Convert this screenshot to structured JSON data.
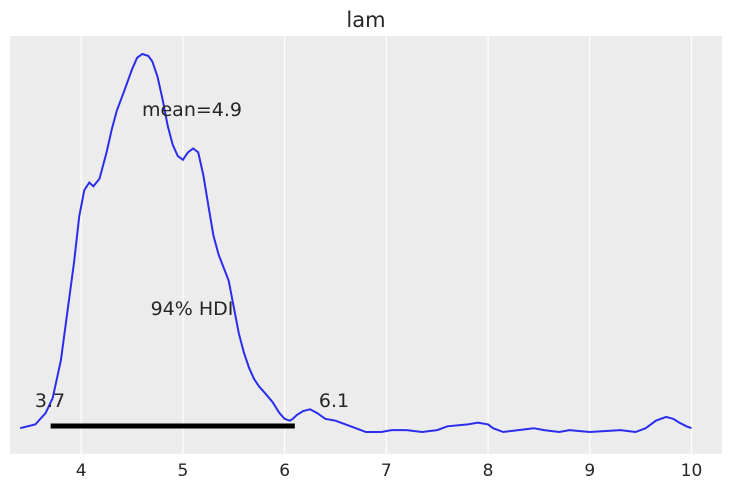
{
  "chart_data": {
    "type": "area",
    "title": "lam",
    "xlabel": "",
    "ylabel": "",
    "xlim": [
      3.3,
      10.3
    ],
    "ylim": [
      0,
      1
    ],
    "xticks": [
      4,
      5,
      6,
      7,
      8,
      9,
      10
    ],
    "grid": "vertical",
    "colors": {
      "background": "#ececec",
      "grid": "#ffffff",
      "line": "#2a2eec",
      "hdi": "#000000"
    },
    "series": [
      {
        "x": [
          3.4,
          3.55,
          3.65,
          3.72,
          3.8,
          3.87,
          3.93,
          3.98,
          4.03,
          4.08,
          4.12,
          4.18,
          4.25,
          4.3,
          4.35,
          4.42,
          4.5,
          4.55,
          4.6,
          4.66,
          4.7,
          4.75,
          4.8,
          4.85,
          4.9,
          4.95,
          5.0,
          5.05,
          5.1,
          5.15,
          5.2,
          5.25,
          5.3,
          5.35,
          5.45,
          5.5,
          5.55,
          5.6,
          5.65,
          5.7,
          5.75,
          5.8,
          5.88,
          5.95,
          6.0,
          6.05,
          6.08,
          6.12,
          6.18,
          6.25,
          6.32,
          6.4,
          6.5,
          6.65,
          6.8,
          6.95,
          7.05,
          7.2,
          7.35,
          7.5,
          7.6,
          7.8,
          7.9,
          8.0,
          8.05,
          8.15,
          8.3,
          8.45,
          8.55,
          8.7,
          8.8,
          9.0,
          9.3,
          9.45,
          9.55,
          9.65,
          9.75,
          9.82,
          9.88,
          9.95,
          10.0
        ],
        "y": [
          0.01,
          0.02,
          0.05,
          0.09,
          0.19,
          0.33,
          0.45,
          0.57,
          0.64,
          0.66,
          0.65,
          0.67,
          0.74,
          0.8,
          0.85,
          0.9,
          0.96,
          0.99,
          1.0,
          0.995,
          0.98,
          0.94,
          0.88,
          0.81,
          0.76,
          0.73,
          0.72,
          0.74,
          0.75,
          0.74,
          0.68,
          0.6,
          0.52,
          0.47,
          0.4,
          0.33,
          0.26,
          0.21,
          0.17,
          0.14,
          0.12,
          0.105,
          0.08,
          0.05,
          0.035,
          0.03,
          0.035,
          0.045,
          0.055,
          0.06,
          0.05,
          0.035,
          0.03,
          0.015,
          0.0,
          0.0,
          0.005,
          0.005,
          0.0,
          0.005,
          0.015,
          0.02,
          0.025,
          0.02,
          0.01,
          0.0,
          0.005,
          0.01,
          0.005,
          0.0,
          0.005,
          0.0,
          0.005,
          0.0,
          0.01,
          0.03,
          0.04,
          0.035,
          0.025,
          0.015,
          0.01
        ]
      }
    ],
    "hdi": {
      "label": "94% HDI",
      "low": 3.7,
      "high": 6.1,
      "low_label": "3.7",
      "high_label": "6.1"
    },
    "mean": {
      "label": "mean=4.9"
    }
  }
}
